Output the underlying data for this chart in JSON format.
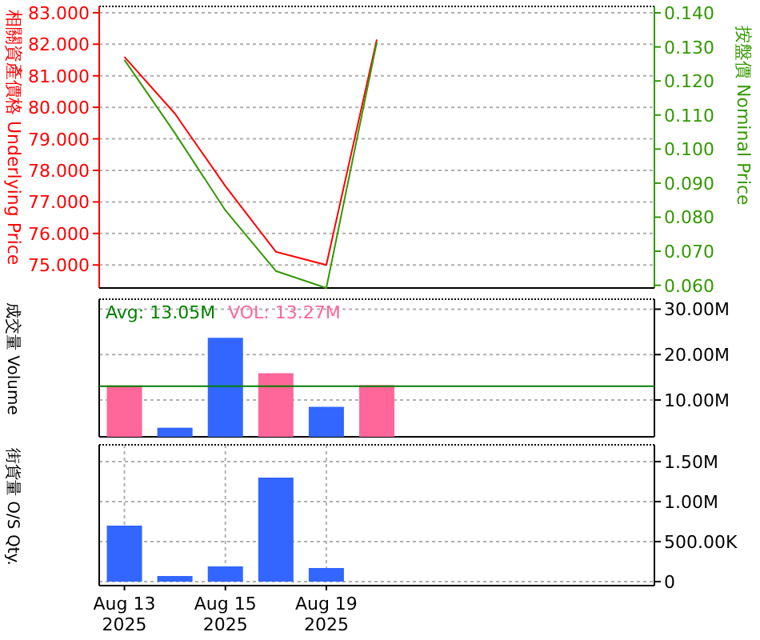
{
  "chart_data": [
    {
      "type": "line",
      "categories": [
        null,
        null,
        null,
        null,
        null,
        null,
        null,
        null,
        null,
        null,
        null
      ],
      "ylabel": "相關資產價格 Underlying Price",
      "y2label": "按盤價 Nominal Price",
      "series": [
        {
          "color": "#ff0000",
          "values": [
            81.6,
            79.8,
            77.5,
            75.42,
            75.0,
            82.15,
            null,
            null,
            null,
            null,
            null
          ]
        },
        {
          "color": "#339900",
          "axis": "y2",
          "values": [
            0.1262,
            0.1047,
            0.082,
            0.0642,
            0.0592,
            0.1314,
            null,
            null,
            null,
            null,
            null
          ]
        }
      ],
      "ylim": [
        74.27,
        83.2
      ],
      "yticks": [
        {
          "value": 75,
          "label": "75.000"
        },
        {
          "value": 76,
          "label": "76.000"
        },
        {
          "value": 77,
          "label": "77.000"
        },
        {
          "value": 78,
          "label": "78.000"
        },
        {
          "value": 79,
          "label": "79.000"
        },
        {
          "value": 80,
          "label": "80.000"
        },
        {
          "value": 81,
          "label": "81.000"
        },
        {
          "value": 82,
          "label": "82.000"
        },
        {
          "value": 83,
          "label": "83.000"
        }
      ],
      "y2lim": [
        0.0592,
        0.1419
      ],
      "y2ticks": [
        {
          "value": 0.06,
          "label": "0.060"
        },
        {
          "value": 0.07,
          "label": "0.070"
        },
        {
          "value": 0.08,
          "label": "0.080"
        },
        {
          "value": 0.09,
          "label": "0.090"
        },
        {
          "value": 0.1,
          "label": "0.100"
        },
        {
          "value": 0.11,
          "label": "0.110"
        },
        {
          "value": 0.12,
          "label": "0.120"
        },
        {
          "value": 0.13,
          "label": "0.130"
        },
        {
          "value": 0.14,
          "label": "0.140"
        }
      ],
      "grid": true,
      "tick_labels": "y"
    },
    {
      "type": "bar",
      "categories": [
        null,
        null,
        null,
        null,
        null,
        null,
        null,
        null,
        null,
        null,
        null
      ],
      "ylabel": "成交量 Volume",
      "values": [
        13200000,
        3900000,
        23700000,
        15900000,
        8500000,
        13270000,
        null,
        null,
        null,
        null,
        null
      ],
      "colors": [
        "#ff6699",
        "#3366ff",
        "#3366ff",
        "#ff6699",
        "#3366ff",
        "#ff6699",
        null,
        null,
        null,
        null,
        null
      ],
      "ylim": [
        1900000,
        32200000
      ],
      "yticks": [
        {
          "value": 10000000,
          "label": "10.00M"
        },
        {
          "value": 20000000,
          "label": "20.00M"
        },
        {
          "value": 30000000,
          "label": "30.00M"
        }
      ],
      "ref_lines": [
        {
          "axis": "y",
          "value": 13050000,
          "label": "Avg: 13.05M",
          "color": "#008000"
        }
      ],
      "annotations": [
        "VOL: 13.27M"
      ],
      "grid": true,
      "tick_labels": "y"
    },
    {
      "type": "bar",
      "categories": [
        "Aug 13 2025",
        null,
        "Aug 15 2025",
        null,
        "Aug 19 2025",
        null,
        null,
        null,
        null,
        null,
        null
      ],
      "ylabel": "街貨量 O/S Qty.",
      "values": [
        700000,
        70000,
        190000,
        1300000,
        170000,
        null,
        null,
        null,
        null,
        null,
        null
      ],
      "color": "#3366ff",
      "ylim": [
        -50000,
        1710000
      ],
      "yticks": [
        {
          "value": 0,
          "label": "0"
        },
        {
          "value": 500000,
          "label": "500.00K"
        },
        {
          "value": 1000000,
          "label": "1.00M"
        },
        {
          "value": 1500000,
          "label": "1.50M"
        }
      ],
      "grid": true
    }
  ]
}
